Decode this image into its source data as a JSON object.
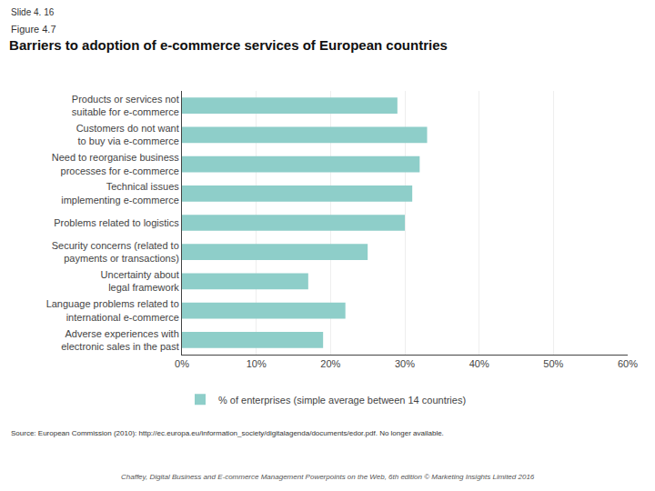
{
  "chart_data": {
    "type": "bar",
    "orientation": "horizontal",
    "title": "Barriers to adoption of e‑commerce services of European countries",
    "annotations": [
      "Slide 4. 16",
      "Figure 4.7",
      "Source: European Commission (2010): http://ec.europa.eu/information_society/digitalagenda/documents/edor.pdf. No longer available.",
      "Chaffey, Digital Business and E-commerce Management Powerpoints on the Web, 6th edition © Marketing Insights Limited 2016"
    ],
    "categories": [
      "Products or services not\nsuitable for e-commerce",
      "Customers do not want\nto buy via e-commerce",
      "Need to reorganise business\nprocesses for e-commerce",
      "Technical issues\nimplementing e-commerce",
      "Problems related to logistics",
      "Security concerns (related to\npayments or transactions)",
      "Uncertainty about\nlegal framework",
      "Language problems related to\ninternational e-commerce",
      "Adverse experiences with\nelectronic sales in the past"
    ],
    "series": [
      {
        "name": "% of enterprises (simple average between 14 countries)",
        "color": "#8ecec9",
        "values": [
          29,
          33,
          32,
          31,
          30,
          25,
          17,
          22,
          19
        ]
      }
    ],
    "xlim": [
      0,
      60
    ],
    "xticks": [
      {
        "value": 0,
        "label": "0%"
      },
      {
        "value": 10,
        "label": "10%"
      },
      {
        "value": 20,
        "label": "20%"
      },
      {
        "value": 30,
        "label": "30%"
      },
      {
        "value": 40,
        "label": "40%"
      },
      {
        "value": 50,
        "label": "50%"
      },
      {
        "value": 60,
        "label": "60%"
      }
    ],
    "grid": true,
    "legend": "bottom"
  }
}
